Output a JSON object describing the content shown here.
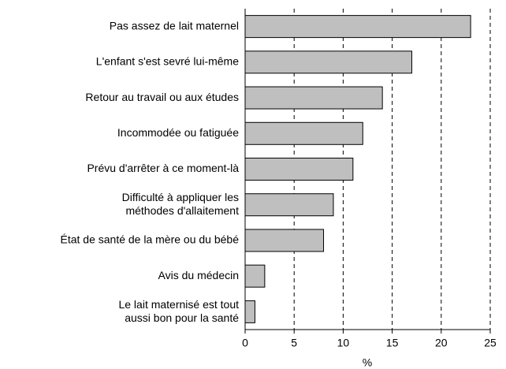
{
  "chart_data": {
    "type": "barh",
    "categories": [
      "Pas assez de lait maternel",
      "L'enfant s'est sevré lui-même",
      "Retour au travail ou aux études",
      "Incommodée ou fatiguée",
      "Prévu d'arrêter à ce moment-là",
      "Difficulté à appliquer les\nméthodes d'allaitement",
      "État de santé de la mère ou du bébé",
      "Avis du médecin",
      "Le lait maternisé est tout\naussi bon pour la santé"
    ],
    "values": [
      23,
      17,
      14,
      12,
      11,
      9,
      8,
      2,
      1
    ],
    "color": "#bfbfbf",
    "xlabel": "%",
    "xlim": [
      0,
      25
    ],
    "xticks": [
      0,
      5,
      10,
      15,
      20,
      25
    ],
    "grid": true
  }
}
